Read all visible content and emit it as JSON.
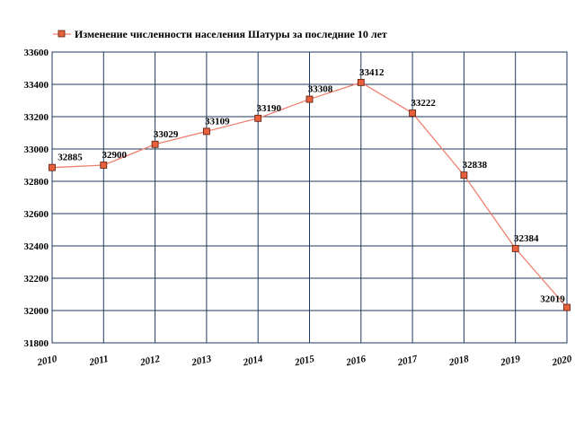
{
  "chart_data": {
    "type": "line",
    "title": "",
    "xlabel": "",
    "ylabel": "",
    "x": [
      "2010",
      "2011",
      "2012",
      "2013",
      "2014",
      "2015",
      "2016",
      "2017",
      "2018",
      "2019",
      "2020"
    ],
    "series": [
      {
        "name": "Изменение численности населения Шатуры за последние 10 лет",
        "values": [
          32885,
          32900,
          33029,
          33109,
          33190,
          33308,
          33412,
          33222,
          32838,
          32384,
          32019
        ],
        "labels": [
          "32885",
          "32900",
          "33029",
          "33109",
          "33190",
          "33308",
          "33412",
          "33222",
          "32838",
          "32384",
          "32019"
        ]
      }
    ],
    "ylim": [
      31800,
      33600
    ],
    "yticks": [
      "31800",
      "32000",
      "32200",
      "32400",
      "32600",
      "32800",
      "33000",
      "33200",
      "33400",
      "33600"
    ],
    "grid": true,
    "legend": "top-left"
  },
  "colors": {
    "line": "#f08070",
    "marker_fill": "#e8603c",
    "marker_stroke": "#5a1a0a",
    "grid": "#1f3a5f",
    "axis": "#1f3a5f"
  }
}
